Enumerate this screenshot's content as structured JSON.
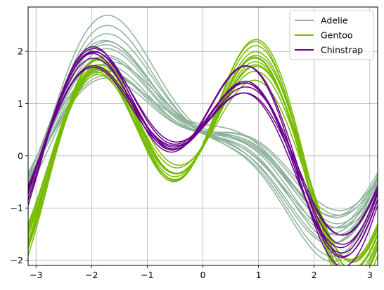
{
  "chart_data": {
    "type": "line",
    "subtype": "andrews-curves",
    "title": "",
    "xlabel": "",
    "ylabel": "",
    "xlim": [
      -3.1416,
      3.1416
    ],
    "ylim": [
      -2.1,
      2.85
    ],
    "xticks": [
      -3,
      -2,
      -1,
      0,
      1,
      2,
      3
    ],
    "yticks": [
      -2,
      -1,
      0,
      1,
      2
    ],
    "xtick_labels": [
      "−3",
      "−2",
      "−1",
      "0",
      "1",
      "2",
      "3"
    ],
    "ytick_labels": [
      "−2",
      "−1",
      "0",
      "1",
      "2"
    ],
    "grid": true,
    "legend_position": "top-right",
    "series": [
      {
        "name": "Adelie",
        "color": "#8cb39a",
        "coeffs": [
          [
            0.42,
            -0.88,
            0.44,
            0.4,
            -0.28
          ],
          [
            0.44,
            -0.98,
            0.46,
            0.42,
            -0.3
          ],
          [
            0.4,
            -1.1,
            0.48,
            0.46,
            -0.32
          ],
          [
            0.46,
            -1.22,
            0.5,
            0.48,
            -0.34
          ],
          [
            0.43,
            -1.35,
            0.52,
            0.5,
            -0.36
          ],
          [
            0.41,
            -1.48,
            0.54,
            0.52,
            -0.38
          ],
          [
            0.45,
            -1.62,
            0.5,
            0.5,
            -0.36
          ],
          [
            0.39,
            -1.78,
            0.56,
            0.55,
            -0.4
          ],
          [
            0.44,
            -1.92,
            0.58,
            0.57,
            -0.42
          ],
          [
            0.42,
            -1.05,
            0.38,
            0.44,
            -0.24
          ],
          [
            0.4,
            -1.3,
            0.4,
            0.46,
            -0.26
          ],
          [
            0.47,
            -1.45,
            0.44,
            0.48,
            -0.3
          ],
          [
            0.38,
            -1.18,
            0.6,
            0.38,
            -0.34
          ],
          [
            0.43,
            -1.0,
            0.52,
            0.41,
            -0.22
          ],
          [
            0.41,
            -1.58,
            0.46,
            0.53,
            -0.28
          ]
        ]
      },
      {
        "name": "Gentoo",
        "color": "#77bb00",
        "coeffs": [
          [
            0.28,
            -0.3,
            0.8,
            1.12,
            -0.82
          ],
          [
            0.3,
            -0.36,
            0.84,
            1.18,
            -0.86
          ],
          [
            0.26,
            -0.24,
            0.9,
            1.26,
            -0.9
          ],
          [
            0.32,
            -0.42,
            0.78,
            1.08,
            -0.8
          ],
          [
            0.27,
            -0.48,
            0.96,
            1.3,
            -0.94
          ],
          [
            0.29,
            -0.2,
            1.0,
            1.36,
            -0.98
          ],
          [
            0.31,
            -0.54,
            0.74,
            1.04,
            -0.78
          ],
          [
            0.25,
            -0.34,
            1.06,
            1.42,
            -1.02
          ],
          [
            0.3,
            -0.28,
            0.86,
            1.22,
            -0.88
          ],
          [
            0.28,
            -0.46,
            0.92,
            1.28,
            -0.92
          ],
          [
            0.33,
            -0.38,
            0.76,
            1.14,
            -0.84
          ],
          [
            0.27,
            -0.26,
            0.98,
            1.32,
            -0.96
          ]
        ]
      },
      {
        "name": "Chinstrap",
        "color": "#6a008a",
        "coeffs": [
          [
            0.52,
            -0.62,
            0.58,
            0.98,
            -0.4
          ],
          [
            0.55,
            -0.72,
            0.64,
            1.06,
            -0.44
          ],
          [
            0.5,
            -0.82,
            0.7,
            1.16,
            -0.48
          ],
          [
            0.58,
            -0.66,
            0.76,
            1.24,
            -0.5
          ],
          [
            0.53,
            -0.9,
            0.62,
            1.02,
            -0.42
          ],
          [
            0.56,
            -0.78,
            0.82,
            1.3,
            -0.52
          ],
          [
            0.51,
            -0.7,
            0.56,
            0.94,
            -0.38
          ],
          [
            0.57,
            -0.86,
            0.68,
            1.12,
            -0.46
          ]
        ]
      }
    ]
  }
}
